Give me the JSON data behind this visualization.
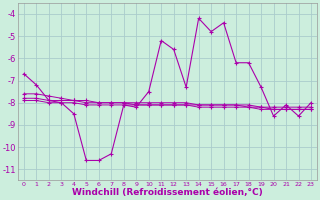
{
  "bg_color": "#cceedd",
  "grid_color": "#aacccc",
  "line_color": "#aa00aa",
  "marker": "+",
  "xlabel": "Windchill (Refroidissement éolien,°C)",
  "xlabel_fontsize": 6.5,
  "xlim": [
    -0.5,
    23.5
  ],
  "ylim": [
    -11.5,
    -3.5
  ],
  "yticks": [
    -11,
    -10,
    -9,
    -8,
    -7,
    -6,
    -5,
    -4
  ],
  "xticks": [
    0,
    1,
    2,
    3,
    4,
    5,
    6,
    7,
    8,
    9,
    10,
    11,
    12,
    13,
    14,
    15,
    16,
    17,
    18,
    19,
    20,
    21,
    22,
    23
  ],
  "series_main_x": [
    0,
    1,
    2,
    3,
    4,
    5,
    6,
    7,
    8,
    9,
    10,
    11,
    12,
    13,
    14,
    15,
    16,
    17,
    18,
    19,
    20,
    21,
    22,
    23
  ],
  "series_main_y": [
    -6.7,
    -7.2,
    -7.9,
    -8.0,
    -8.5,
    -10.6,
    -10.6,
    -10.3,
    -8.1,
    -8.2,
    -7.5,
    -5.2,
    -5.6,
    -7.3,
    -4.2,
    -4.8,
    -4.4,
    -6.2,
    -6.2,
    -7.3,
    -8.6,
    -8.1,
    -8.6,
    -8.0
  ],
  "series_flat1_x": [
    0,
    1,
    2,
    3,
    4,
    5,
    6,
    7,
    8,
    9,
    10,
    11,
    12,
    13,
    14,
    15,
    16,
    17,
    18,
    19,
    20,
    21,
    22,
    23
  ],
  "series_flat1_y": [
    -7.8,
    -7.8,
    -7.9,
    -7.9,
    -7.9,
    -8.0,
    -8.0,
    -8.0,
    -8.0,
    -8.1,
    -8.1,
    -8.1,
    -8.1,
    -8.1,
    -8.1,
    -8.1,
    -8.1,
    -8.1,
    -8.2,
    -8.2,
    -8.3,
    -8.3,
    -8.3,
    -8.3
  ],
  "series_flat2_x": [
    0,
    1,
    2,
    3,
    4,
    5,
    6,
    7,
    8,
    9,
    10,
    11,
    12,
    13,
    14,
    15,
    16,
    17,
    18,
    19,
    20,
    21,
    22,
    23
  ],
  "series_flat2_y": [
    -7.6,
    -7.6,
    -7.7,
    -7.8,
    -7.9,
    -7.9,
    -8.0,
    -8.0,
    -8.0,
    -8.0,
    -8.0,
    -8.0,
    -8.0,
    -8.0,
    -8.1,
    -8.1,
    -8.1,
    -8.1,
    -8.1,
    -8.2,
    -8.2,
    -8.2,
    -8.2,
    -8.2
  ],
  "series_flat3_x": [
    0,
    1,
    2,
    3,
    4,
    5,
    6,
    7,
    8,
    9,
    10,
    11,
    12,
    13,
    14,
    15,
    16,
    17,
    18,
    19,
    20,
    21,
    22,
    23
  ],
  "series_flat3_y": [
    -7.9,
    -7.9,
    -8.0,
    -8.0,
    -8.0,
    -8.1,
    -8.1,
    -8.1,
    -8.1,
    -8.1,
    -8.1,
    -8.1,
    -8.1,
    -8.1,
    -8.2,
    -8.2,
    -8.2,
    -8.2,
    -8.2,
    -8.3,
    -8.3,
    -8.3,
    -8.3,
    -8.3
  ]
}
